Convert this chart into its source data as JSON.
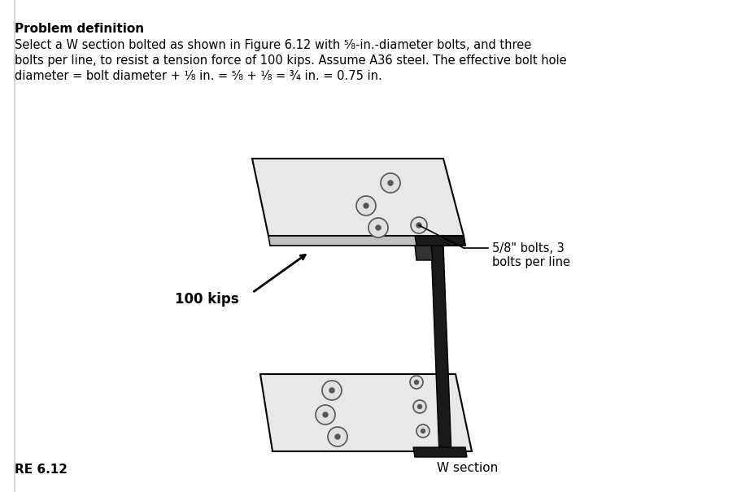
{
  "title": "Problem definition",
  "title_fontsize": 11,
  "body_text": "Select a W section bolted as shown in Figure 6.12 with ⁵⁄₈-in.-diameter bolts, and three\nbolts per line, to resist a tension force of 100 kips. Assume A36 steel. The effective bolt hole\ndiameter = bolt diameter + ¹⁄₈ in. = ⁵⁄₈ + ¹⁄₈ = ¾ in. = 0.75 in.",
  "body_fontsize": 10.5,
  "label_100kips": "100 kips",
  "label_bolts": "5/8\" bolts, 3\nbolts per line",
  "label_wsection": "W section",
  "label_figure": "RE 6.12",
  "bg_color": "#ffffff",
  "text_color": "#000000",
  "line_color": "#000000",
  "figure_label_fontsize": 11
}
